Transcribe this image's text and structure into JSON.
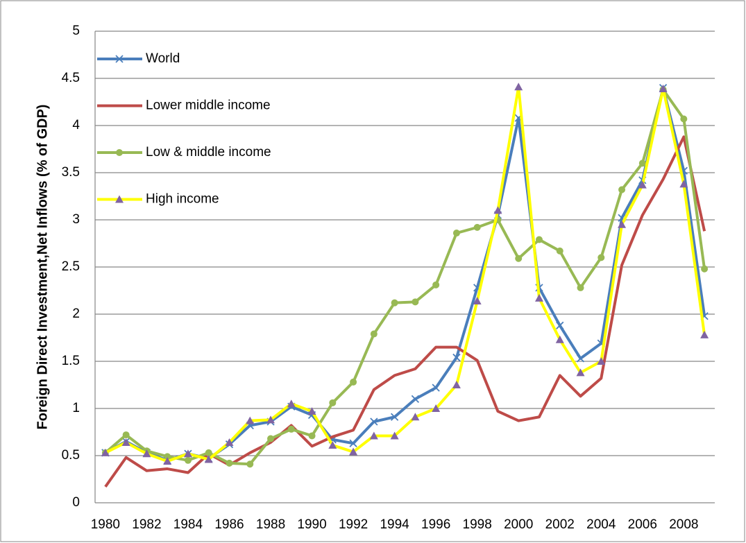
{
  "chart_data": {
    "type": "line",
    "y_label": "Foreign Direct Investment,Net Inflows (% of GDP)",
    "categories": [
      "1980",
      null,
      "1982",
      null,
      "1984",
      null,
      "1986",
      null,
      "1988",
      null,
      "1990",
      null,
      "1992",
      null,
      "1994",
      null,
      "1996",
      null,
      "1998",
      null,
      "2000",
      null,
      "2002",
      null,
      "2004",
      null,
      "2006",
      null,
      "2008",
      null
    ],
    "series": [
      {
        "name": "World",
        "color": "#4a7ebb",
        "marker": "x",
        "marker_color": "#4a7ebb",
        "values": [
          0.53,
          0.65,
          0.53,
          0.45,
          0.52,
          0.47,
          0.62,
          0.82,
          0.86,
          1.02,
          0.93,
          0.67,
          0.63,
          0.86,
          0.91,
          1.1,
          1.22,
          1.54,
          2.28,
          3.05,
          4.08,
          2.28,
          1.88,
          1.53,
          1.69,
          3.02,
          3.42,
          4.4,
          3.52,
          1.98
        ]
      },
      {
        "name": "Lower middle income",
        "color": "#be4b48",
        "marker": "none",
        "marker_color": "#be4b48",
        "values": [
          0.17,
          0.48,
          0.34,
          0.36,
          0.32,
          0.52,
          0.4,
          0.53,
          0.64,
          0.82,
          0.6,
          0.7,
          0.77,
          1.2,
          1.35,
          1.42,
          1.65,
          1.65,
          1.51,
          0.97,
          0.87,
          0.91,
          1.35,
          1.13,
          1.32,
          2.52,
          3.05,
          3.43,
          3.88,
          2.88
        ]
      },
      {
        "name": "Low & middle income",
        "color": "#98b954",
        "marker": "circle",
        "marker_color": "#98b954",
        "values": [
          0.53,
          0.72,
          0.55,
          0.49,
          0.45,
          0.53,
          0.42,
          0.41,
          0.68,
          0.78,
          0.71,
          1.06,
          1.28,
          1.79,
          2.12,
          2.13,
          2.31,
          2.86,
          2.92,
          3.0,
          2.59,
          2.79,
          2.67,
          2.28,
          2.6,
          3.32,
          3.6,
          4.38,
          4.07,
          2.48
        ]
      },
      {
        "name": "High income",
        "color": "#ffff00",
        "marker": "triangle",
        "marker_color": "#8064a2",
        "values": [
          0.53,
          0.64,
          0.52,
          0.44,
          0.52,
          0.46,
          0.64,
          0.87,
          0.88,
          1.05,
          0.97,
          0.61,
          0.54,
          0.71,
          0.71,
          0.91,
          1.0,
          1.25,
          2.14,
          3.1,
          4.41,
          2.17,
          1.73,
          1.38,
          1.5,
          2.95,
          3.37,
          4.39,
          3.38,
          1.78
        ]
      }
    ],
    "ylim": [
      0,
      5
    ],
    "yticks": [
      0,
      0.5,
      1,
      1.5,
      2,
      2.5,
      3,
      3.5,
      4,
      4.5,
      5
    ],
    "grid": true,
    "legend": "upper-left"
  }
}
